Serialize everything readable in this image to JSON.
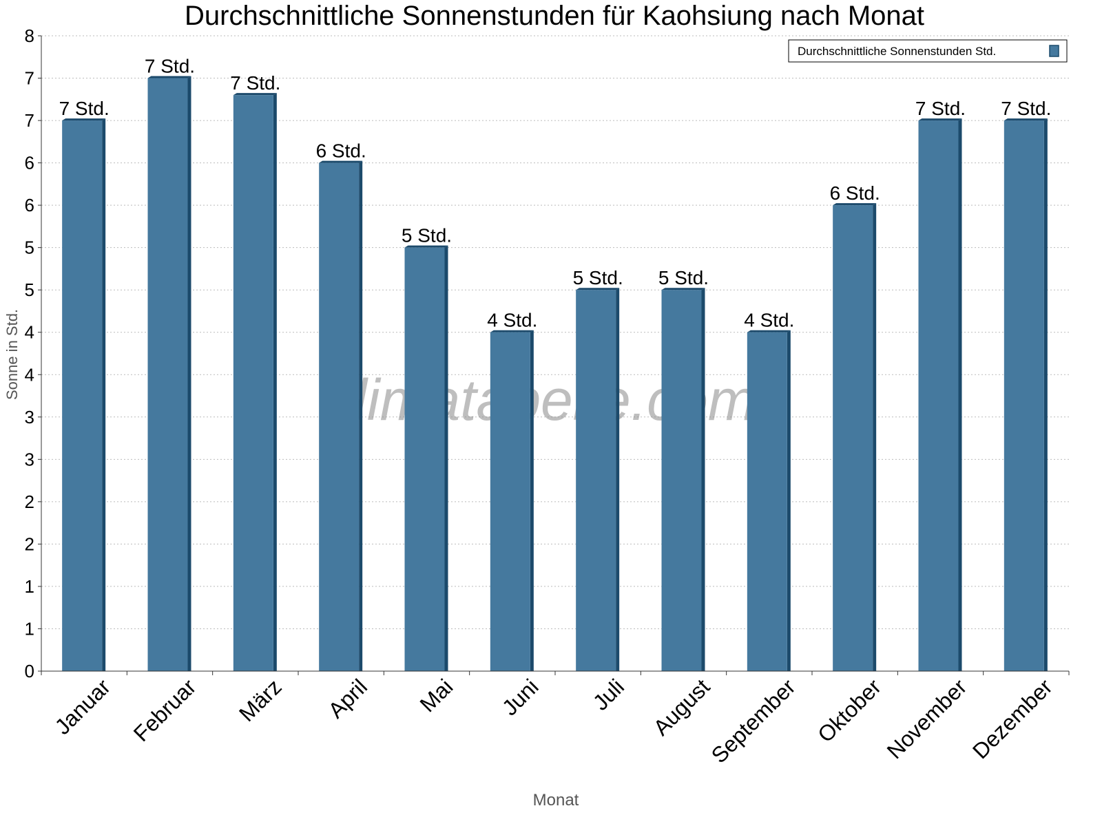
{
  "chart_data": {
    "type": "bar",
    "title": "Durchschnittliche Sonnenstunden für Kaohsiung nach Monat",
    "xlabel": "Monat",
    "ylabel": "Sonne in Std.",
    "categories": [
      "Januar",
      "Februar",
      "März",
      "April",
      "Mai",
      "Juni",
      "Juli",
      "August",
      "September",
      "Oktober",
      "November",
      "Dezember"
    ],
    "series": [
      {
        "name": "Durchschnittliche Sonnenstunden Std.",
        "values": [
          6.5,
          7.0,
          6.8,
          6.0,
          5.0,
          4.0,
          4.5,
          4.5,
          4.0,
          5.5,
          6.5,
          6.5
        ],
        "data_labels": [
          "7 Std.",
          "7 Std.",
          "7 Std.",
          "6 Std.",
          "5 Std.",
          "4 Std.",
          "5 Std.",
          "5 Std.",
          "4 Std.",
          "6 Std.",
          "7 Std.",
          "7 Std."
        ],
        "color": "#45799E"
      }
    ],
    "ylim": [
      0,
      7.5
    ],
    "y_ticks": [
      0,
      0.5,
      1,
      1.5,
      2,
      2.5,
      3,
      3.5,
      4,
      4.5,
      5,
      5.5,
      6,
      6.5,
      7,
      7.5
    ],
    "y_tick_labels": [
      "0",
      "1",
      "1",
      "2",
      "2",
      "3",
      "3",
      "4",
      "4",
      "5",
      "5",
      "6",
      "6",
      "7",
      "7",
      "8"
    ],
    "grid": true,
    "legend_position": "top-right",
    "watermark": "klimatabelle.com"
  }
}
